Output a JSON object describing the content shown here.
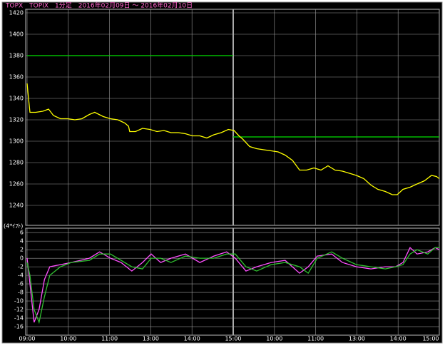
{
  "header": {
    "title": "TOPX　TOPIX　1分足　2016年02月09日 ～ 2016年02月10日"
  },
  "chart_data": [
    {
      "type": "line",
      "grid": true,
      "day_separator_x": 5,
      "xlim": [
        0,
        10
      ],
      "xticks": [
        0,
        1,
        2,
        3,
        4,
        5,
        6,
        7,
        8,
        9,
        10
      ],
      "ylim": [
        1222,
        1422
      ],
      "yticks": [
        1240,
        1260,
        1280,
        1300,
        1320,
        1340,
        1360,
        1380,
        1400,
        1420
      ],
      "x": [
        0,
        0.03,
        0.07,
        0.21,
        0.38,
        0.52,
        0.64,
        0.81,
        0.99,
        1.16,
        1.33,
        1.51,
        1.64,
        1.85,
        2.02,
        2.2,
        2.37,
        2.46,
        2.49,
        2.63,
        2.8,
        2.98,
        3.15,
        3.32,
        3.49,
        3.67,
        3.84,
        4.01,
        4.19,
        4.36,
        4.53,
        4.71,
        4.88,
        5.02,
        5.14,
        5.23,
        5.4,
        5.57,
        5.74,
        5.92,
        6.09,
        6.26,
        6.44,
        6.61,
        6.78,
        6.96,
        7.13,
        7.3,
        7.47,
        7.65,
        7.82,
        7.99,
        8.17,
        8.34,
        8.51,
        8.69,
        8.86,
        8.98,
        9.12,
        9.29,
        9.46,
        9.64,
        9.81,
        9.93,
        10
      ],
      "series": [
        {
          "color": "#ffff00",
          "values": [
            1354,
            1342,
            1327,
            1327,
            1328,
            1330,
            1324,
            1321,
            1321,
            1320,
            1321,
            1325,
            1327,
            1323,
            1321,
            1320,
            1317,
            1314,
            1309,
            1309,
            1312,
            1311,
            1309,
            1310,
            1308,
            1308,
            1307,
            1305,
            1305,
            1303,
            1306,
            1308,
            1311,
            1310,
            1305,
            1302,
            1295,
            1293,
            1292,
            1291,
            1290,
            1287,
            1282,
            1273,
            1273,
            1275,
            1273,
            1277,
            1273,
            1272,
            1270,
            1268,
            1265,
            1259,
            1255,
            1253,
            1250,
            1250,
            1255,
            1257,
            1260,
            1263,
            1268,
            1267,
            1265
          ]
        }
      ],
      "reference_lines": [
        {
          "from": 0,
          "to": 5,
          "value": 1380,
          "color": "#00e000"
        },
        {
          "from": 5,
          "to": 10,
          "value": 1304,
          "color": "#00e000"
        }
      ]
    },
    {
      "type": "line",
      "grid": true,
      "day_separator_x": 5,
      "ylabel": "(4*ｲﾌﾄ)",
      "xlim": [
        0,
        10
      ],
      "xticks": [
        {
          "value": 0,
          "label": "09:00"
        },
        {
          "value": 1,
          "label": "10:00"
        },
        {
          "value": 2,
          "label": "11:00"
        },
        {
          "value": 3,
          "label": "13:00"
        },
        {
          "value": 4,
          "label": "14:00"
        },
        {
          "value": 5,
          "label": "15:00"
        },
        {
          "value": 6,
          "label": "10:00"
        },
        {
          "value": 7,
          "label": "11:00"
        },
        {
          "value": 8,
          "label": "13:00"
        },
        {
          "value": 9,
          "label": "14:00"
        },
        {
          "value": 10,
          "label": "15:00"
        }
      ],
      "ylim": [
        -18,
        6.7
      ],
      "yticks": [
        -16,
        -14,
        -12,
        -10,
        -8,
        -6,
        -4,
        -2,
        0,
        2,
        4,
        6
      ],
      "x": [
        0,
        0.07,
        0.17,
        0.29,
        0.42,
        0.55,
        0.81,
        1.07,
        1.51,
        1.76,
        2.02,
        2.28,
        2.54,
        2.8,
        3.01,
        3.24,
        3.49,
        3.84,
        4.19,
        4.53,
        4.84,
        5.05,
        5.31,
        5.57,
        5.92,
        6.26,
        6.61,
        6.82,
        7.04,
        7.39,
        7.65,
        7.99,
        8.34,
        8.69,
        8.94,
        9.12,
        9.29,
        9.46,
        9.72,
        9.9,
        10
      ],
      "series": [
        {
          "color": "#ff50ff",
          "values": [
            0,
            -6,
            -15,
            -12,
            -5,
            -2,
            -1.5,
            -1,
            0,
            1.5,
            0,
            -1,
            -3,
            -1,
            1,
            -1,
            0,
            1,
            -1,
            0.5,
            1.5,
            0,
            -3,
            -2,
            -1,
            -0.5,
            -3.5,
            -2,
            0.5,
            1,
            -1,
            -2,
            -2.5,
            -2,
            -2,
            -1,
            2.5,
            1,
            1.5,
            2.5,
            2
          ]
        },
        {
          "color": "#30c030",
          "values": [
            -1,
            -4,
            -12,
            -15,
            -9,
            -4,
            -2,
            -1,
            -0.5,
            1,
            1,
            -0.5,
            -2,
            -2.5,
            0,
            0,
            -1,
            0.5,
            0,
            0,
            1,
            1,
            -2,
            -3,
            -1.5,
            -1,
            -2,
            -3.5,
            0,
            1.5,
            0,
            -1.5,
            -2,
            -2.5,
            -2,
            -1.5,
            1,
            2,
            1,
            2.5,
            2.5
          ]
        }
      ]
    }
  ]
}
